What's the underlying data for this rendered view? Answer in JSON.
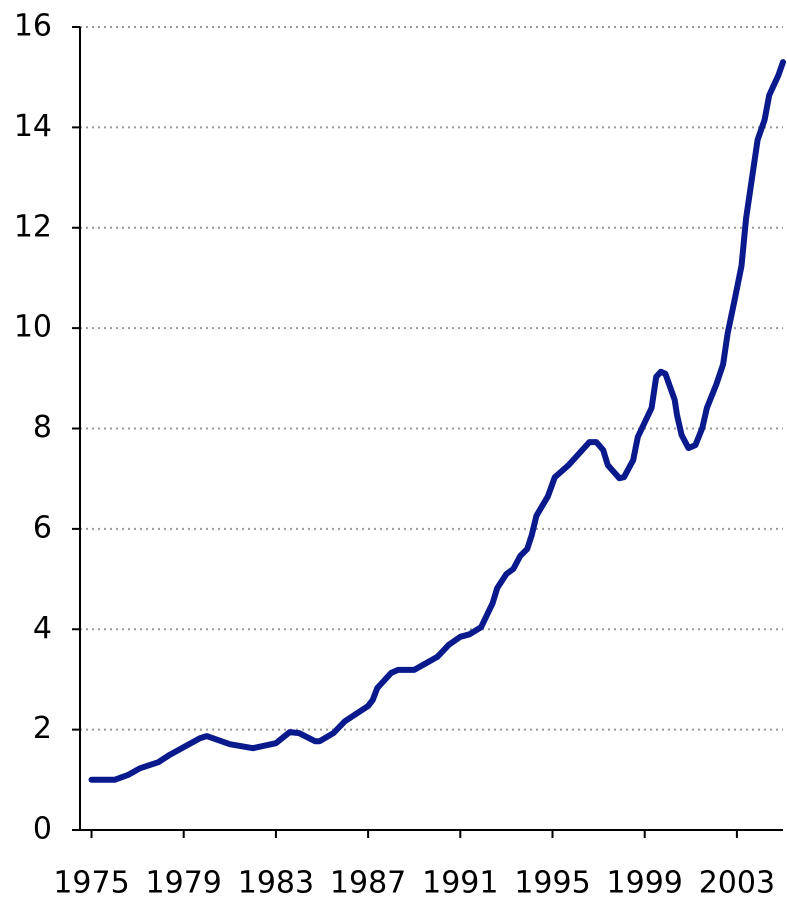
{
  "chart_data": {
    "type": "line",
    "color": "#0a1a8c",
    "grid": true,
    "x": [
      1975.0,
      1976.0,
      1976.6,
      1977.1,
      1977.9,
      1978.4,
      1979.7,
      1980.0,
      1981.0,
      1982.0,
      1983.0,
      1983.6,
      1984.0,
      1984.7,
      1984.9,
      1985.5,
      1986.0,
      1987.0,
      1987.2,
      1987.4,
      1988.0,
      1988.3,
      1989.0,
      1990.0,
      1990.5,
      1991.0,
      1991.4,
      1991.9,
      1992.4,
      1992.6,
      1993.0,
      1993.3,
      1993.6,
      1993.9,
      1994.1,
      1994.3,
      1994.8,
      1995.1,
      1995.7,
      1996.6,
      1996.9,
      1997.2,
      1997.4,
      1997.9,
      1998.1,
      1998.5,
      1998.7,
      1999.3,
      1999.5,
      1999.7,
      1999.9,
      2000.3,
      2000.4,
      2000.6,
      2000.9,
      2001.2,
      2001.5,
      2001.7,
      2002.1,
      2002.4,
      2002.6,
      2002.9,
      2003.2,
      2003.4,
      2003.9,
      2004.2,
      2004.4,
      2004.8,
      2005.0
    ],
    "values": [
      1.0,
      1.0,
      1.1,
      1.23,
      1.35,
      1.5,
      1.83,
      1.87,
      1.71,
      1.63,
      1.73,
      1.95,
      1.93,
      1.77,
      1.77,
      1.93,
      2.17,
      2.47,
      2.59,
      2.83,
      3.13,
      3.19,
      3.19,
      3.45,
      3.69,
      3.85,
      3.9,
      4.04,
      4.52,
      4.82,
      5.1,
      5.2,
      5.46,
      5.6,
      5.88,
      6.26,
      6.65,
      7.03,
      7.27,
      7.73,
      7.73,
      7.57,
      7.27,
      7.01,
      7.03,
      7.37,
      7.83,
      8.41,
      9.03,
      9.13,
      9.09,
      8.57,
      8.27,
      7.87,
      7.61,
      7.67,
      8.01,
      8.41,
      8.87,
      9.28,
      9.9,
      10.56,
      11.24,
      12.19,
      13.75,
      14.15,
      14.64,
      15.04,
      15.3
    ],
    "xlim": [
      1974.5,
      2005.0
    ],
    "xticks": [
      1975,
      1979,
      1983,
      1987,
      1991,
      1995,
      1999,
      2003
    ],
    "ylim": [
      0,
      16
    ],
    "yticks": [
      0,
      2,
      4,
      6,
      8,
      10,
      12,
      14,
      16
    ]
  }
}
